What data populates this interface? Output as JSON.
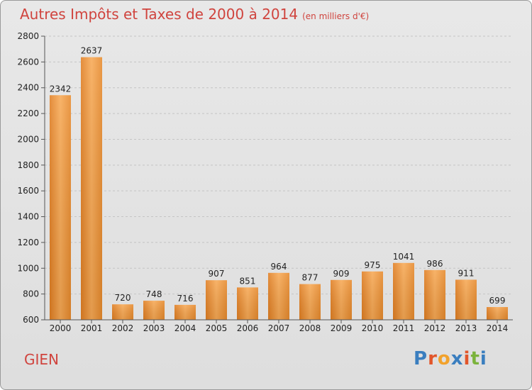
{
  "title": "Autres Impôts et Taxes de 2000 à 2014",
  "unit": "(en milliers d'€)",
  "city": "GIEN",
  "logo": "Proxiti",
  "colors": {
    "bar_light": "#f7a955",
    "bar_dark": "#e07e22",
    "title": "#d0443e"
  },
  "chart_data": {
    "type": "bar",
    "title": "Autres Impôts et Taxes de 2000 à 2014",
    "subtitle": "(en milliers d'€)",
    "categories": [
      "2000",
      "2001",
      "2002",
      "2003",
      "2004",
      "2005",
      "2006",
      "2007",
      "2008",
      "2009",
      "2010",
      "2011",
      "2012",
      "2013",
      "2014"
    ],
    "values": [
      2342,
      2637,
      720,
      748,
      716,
      907,
      851,
      964,
      877,
      909,
      975,
      1041,
      986,
      911,
      699
    ],
    "ylim": [
      600,
      2800
    ],
    "yticks": [
      600,
      800,
      1000,
      1200,
      1400,
      1600,
      1800,
      2000,
      2200,
      2400,
      2600,
      2800
    ],
    "grid": true,
    "legend": "none"
  }
}
